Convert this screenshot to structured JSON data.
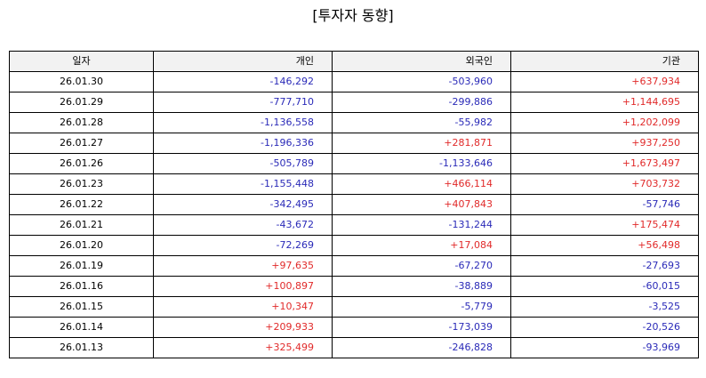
{
  "title": "[투자자 동향]",
  "table": {
    "headers": [
      "일자",
      "개인",
      "외국인",
      "기관"
    ],
    "rows": [
      [
        "26.01.30",
        "-146,292",
        "-503,960",
        "+637,934"
      ],
      [
        "26.01.29",
        "-777,710",
        "-299,886",
        "+1,144,695"
      ],
      [
        "26.01.28",
        "-1,136,558",
        "-55,982",
        "+1,202,099"
      ],
      [
        "26.01.27",
        "-1,196,336",
        "+281,871",
        "+937,250"
      ],
      [
        "26.01.26",
        "-505,789",
        "-1,133,646",
        "+1,673,497"
      ],
      [
        "26.01.23",
        "-1,155,448",
        "+466,114",
        "+703,732"
      ],
      [
        "26.01.22",
        "-342,495",
        "+407,843",
        "-57,746"
      ],
      [
        "26.01.21",
        "-43,672",
        "-131,244",
        "+175,474"
      ],
      [
        "26.01.20",
        "-72,269",
        "+17,084",
        "+56,498"
      ],
      [
        "26.01.19",
        "+97,635",
        "-67,270",
        "-27,693"
      ],
      [
        "26.01.16",
        "+100,897",
        "-38,889",
        "-60,015"
      ],
      [
        "26.01.15",
        "+10,347",
        "-5,779",
        "-3,525"
      ],
      [
        "26.01.14",
        "+209,933",
        "-173,039",
        "-20,526"
      ],
      [
        "26.01.13",
        "+325,499",
        "-246,828",
        "-93,969"
      ]
    ]
  },
  "colors": {
    "positive": "#e12a2a",
    "negative": "#2a2ab8",
    "header_bg": "#f2f2f2",
    "border": "#000000"
  }
}
